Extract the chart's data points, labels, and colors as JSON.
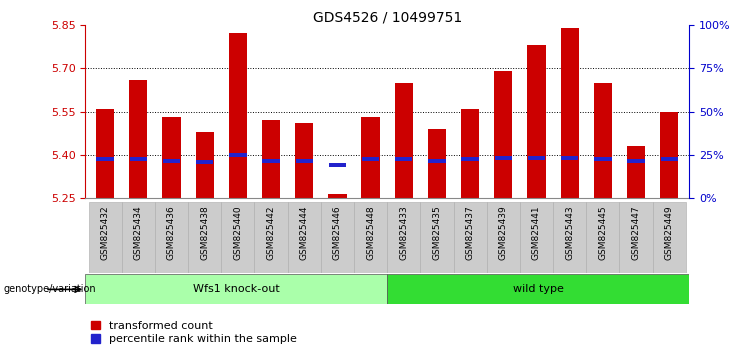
{
  "title": "GDS4526 / 10499751",
  "samples": [
    "GSM825432",
    "GSM825434",
    "GSM825436",
    "GSM825438",
    "GSM825440",
    "GSM825442",
    "GSM825444",
    "GSM825446",
    "GSM825448",
    "GSM825433",
    "GSM825435",
    "GSM825437",
    "GSM825439",
    "GSM825441",
    "GSM825443",
    "GSM825445",
    "GSM825447",
    "GSM825449"
  ],
  "red_values": [
    5.56,
    5.66,
    5.53,
    5.48,
    5.82,
    5.52,
    5.51,
    5.265,
    5.53,
    5.65,
    5.49,
    5.56,
    5.69,
    5.78,
    5.84,
    5.65,
    5.43,
    5.55
  ],
  "blue_values": [
    5.385,
    5.385,
    5.38,
    5.375,
    5.4,
    5.38,
    5.38,
    5.365,
    5.385,
    5.385,
    5.38,
    5.385,
    5.39,
    5.39,
    5.39,
    5.385,
    5.38,
    5.385
  ],
  "ylim_left": [
    5.25,
    5.85
  ],
  "ylim_right": [
    0,
    100
  ],
  "yticks_left": [
    5.25,
    5.4,
    5.55,
    5.7,
    5.85
  ],
  "yticks_right": [
    0,
    25,
    50,
    75,
    100
  ],
  "bar_color": "#cc0000",
  "blue_color": "#2222cc",
  "bar_bottom": 5.25,
  "groups": [
    {
      "label": "Wfs1 knock-out",
      "start": 0,
      "end": 9,
      "color": "#aaffaa"
    },
    {
      "label": "wild type",
      "start": 9,
      "end": 18,
      "color": "#33dd33"
    }
  ],
  "genotype_label": "genotype/variation",
  "legend_items": [
    {
      "color": "#cc0000",
      "label": "transformed count"
    },
    {
      "color": "#2222cc",
      "label": "percentile rank within the sample"
    }
  ],
  "tick_color_left": "#cc0000",
  "tick_color_right": "#0000cc",
  "background_color": "#ffffff",
  "plot_bg_color": "#ffffff",
  "xlabel_bg_color": "#cccccc",
  "grid_yticks": [
    5.4,
    5.55,
    5.7
  ]
}
